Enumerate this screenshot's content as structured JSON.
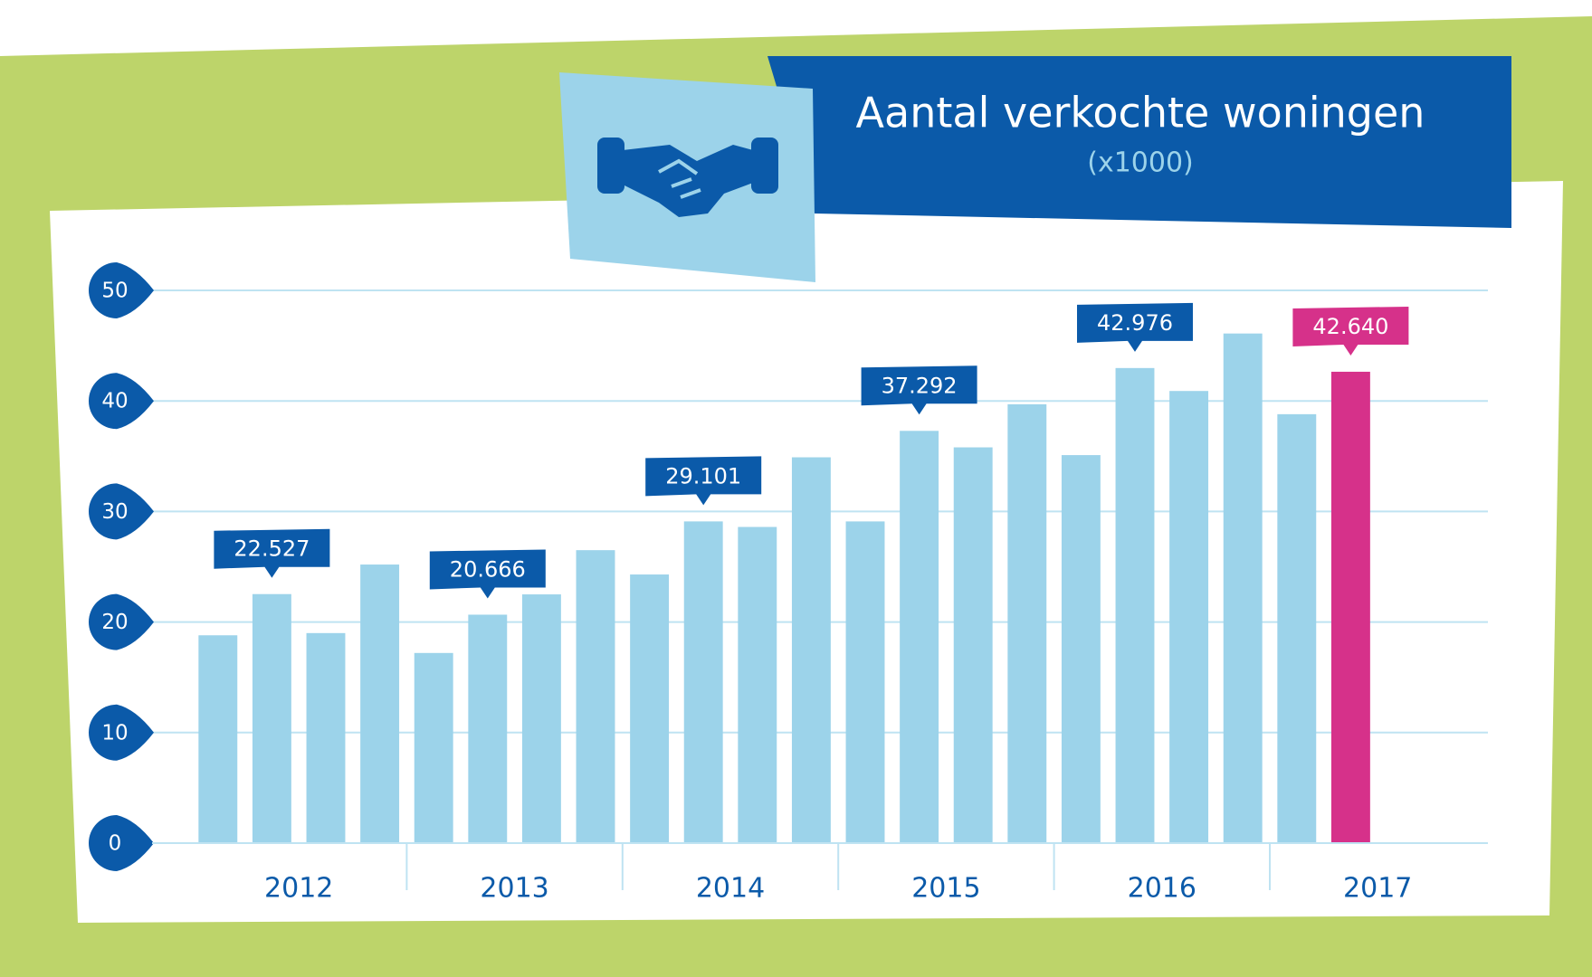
{
  "chart_data": {
    "type": "bar",
    "title": "Aantal verkochte woningen",
    "subtitle": "(x1000)",
    "categories": [
      null,
      null,
      null,
      null,
      null,
      null,
      null,
      null,
      null,
      null,
      null,
      null,
      null,
      null,
      null,
      null,
      null,
      null,
      null,
      null,
      null,
      null
    ],
    "groups": [
      "2012",
      "2013",
      "2014",
      "2015",
      "2016",
      "2017"
    ],
    "values": [
      18.8,
      22.527,
      19.0,
      25.2,
      17.2,
      20.666,
      22.5,
      26.5,
      24.3,
      29.101,
      28.6,
      34.9,
      29.1,
      37.292,
      35.8,
      39.7,
      35.1,
      42.976,
      40.9,
      46.1,
      38.8,
      42.64
    ],
    "value_labels": [
      null,
      "22.527",
      null,
      null,
      null,
      "20.666",
      null,
      null,
      null,
      "29.101",
      null,
      null,
      null,
      "37.292",
      null,
      null,
      null,
      "42.976",
      null,
      null,
      null,
      "42.640"
    ],
    "colors": [
      "#9cd3ea",
      "#9cd3ea",
      "#9cd3ea",
      "#9cd3ea",
      "#9cd3ea",
      "#9cd3ea",
      "#9cd3ea",
      "#9cd3ea",
      "#9cd3ea",
      "#9cd3ea",
      "#9cd3ea",
      "#9cd3ea",
      "#9cd3ea",
      "#9cd3ea",
      "#9cd3ea",
      "#9cd3ea",
      "#9cd3ea",
      "#9cd3ea",
      "#9cd3ea",
      "#9cd3ea",
      "#9cd3ea",
      "#d6318a"
    ],
    "label_colors": [
      null,
      "#0b5aa9",
      null,
      null,
      null,
      "#0b5aa9",
      null,
      null,
      null,
      "#0b5aa9",
      null,
      null,
      null,
      "#0b5aa9",
      null,
      null,
      null,
      "#0b5aa9",
      null,
      null,
      null,
      "#d6318a"
    ],
    "ylim": [
      0,
      50
    ],
    "yticks": [
      0,
      10,
      20,
      30,
      40,
      50
    ],
    "grid": true
  }
}
